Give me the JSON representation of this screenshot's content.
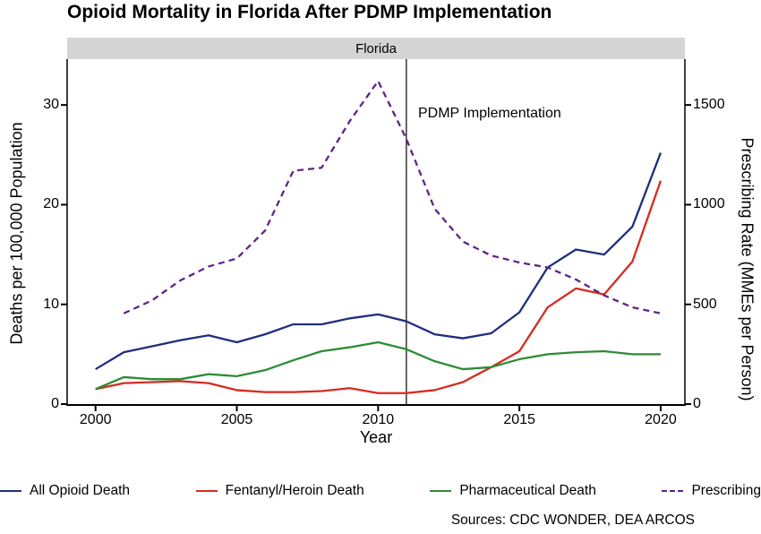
{
  "title": "Opioid Mortality in Florida After PDMP Implementation",
  "facet_label": "Florida",
  "annotation": {
    "label": "PDMP Implementation"
  },
  "axes": {
    "x": {
      "label": "Year",
      "ticks": [
        2000,
        2005,
        2010,
        2015,
        2020
      ]
    },
    "y_left": {
      "label": "Deaths per 100,000 Population",
      "ticks": [
        0,
        10,
        20,
        30
      ]
    },
    "y_right": {
      "label": "Prescribing Rate (MMEs per Person)",
      "ticks": [
        0,
        500,
        1000,
        1500
      ]
    }
  },
  "legend": {
    "items": [
      {
        "label": "All Opioid Death",
        "color": "#1f2e7e",
        "dashed": false
      },
      {
        "label": "Fentanyl/Heroin Death",
        "color": "#d62b1f",
        "dashed": false
      },
      {
        "label": "Pharmaceutical Death",
        "color": "#2e8b35",
        "dashed": false
      },
      {
        "label": "Prescribing",
        "color": "#5f2489",
        "dashed": true
      }
    ]
  },
  "sources": "Sources: CDC WONDER, DEA ARCOS",
  "chart_data": {
    "type": "line",
    "title": "Opioid Mortality in Florida After PDMP Implementation",
    "facet": "Florida",
    "xlabel": "Year",
    "ylabel_left": "Deaths per 100,000 Population",
    "ylabel_right": "Prescribing Rate (MMEs per Person)",
    "xlim": [
      1999,
      2021
    ],
    "ylim_left": [
      0,
      34.6
    ],
    "ylim_right": [
      0,
      1730
    ],
    "grid": false,
    "legend_position": "bottom",
    "vline_year": 2011,
    "vline_label": "PDMP Implementation",
    "x": [
      2000,
      2001,
      2002,
      2003,
      2004,
      2005,
      2006,
      2007,
      2008,
      2009,
      2010,
      2011,
      2012,
      2013,
      2014,
      2015,
      2016,
      2017,
      2018,
      2019,
      2020
    ],
    "series": [
      {
        "name": "All Opioid Death",
        "axis": "left",
        "color": "#1f2e7e",
        "style": "solid",
        "values": [
          3.5,
          5.2,
          5.8,
          6.4,
          6.9,
          6.2,
          7.0,
          8.0,
          8.0,
          8.6,
          9.0,
          8.3,
          7.0,
          6.6,
          7.1,
          9.2,
          13.7,
          15.5,
          15.0,
          17.8,
          25.2
        ]
      },
      {
        "name": "Fentanyl/Heroin Death",
        "axis": "left",
        "color": "#d62b1f",
        "style": "solid",
        "values": [
          1.5,
          2.1,
          2.2,
          2.3,
          2.1,
          1.4,
          1.2,
          1.2,
          1.3,
          1.6,
          1.1,
          1.1,
          1.4,
          2.2,
          3.7,
          5.3,
          9.7,
          11.6,
          11.0,
          14.3,
          22.4
        ]
      },
      {
        "name": "Pharmaceutical Death",
        "axis": "left",
        "color": "#2e8b35",
        "style": "solid",
        "values": [
          1.5,
          2.7,
          2.5,
          2.5,
          3.0,
          2.8,
          3.4,
          4.4,
          5.3,
          5.7,
          6.2,
          5.5,
          4.3,
          3.5,
          3.7,
          4.5,
          5.0,
          5.2,
          5.3,
          5.0,
          5.0
        ]
      },
      {
        "name": "Prescribing",
        "axis": "right",
        "color": "#5f2489",
        "style": "dashed",
        "x": [
          2001,
          2002,
          2003,
          2004,
          2005,
          2006,
          2007,
          2008,
          2009,
          2010,
          2011,
          2012,
          2013,
          2014,
          2015,
          2016,
          2017,
          2018,
          2019,
          2020
        ],
        "values": [
          455,
          520,
          620,
          690,
          730,
          870,
          1170,
          1185,
          1420,
          1620,
          1330,
          980,
          815,
          745,
          710,
          685,
          625,
          545,
          485,
          455
        ]
      }
    ]
  }
}
